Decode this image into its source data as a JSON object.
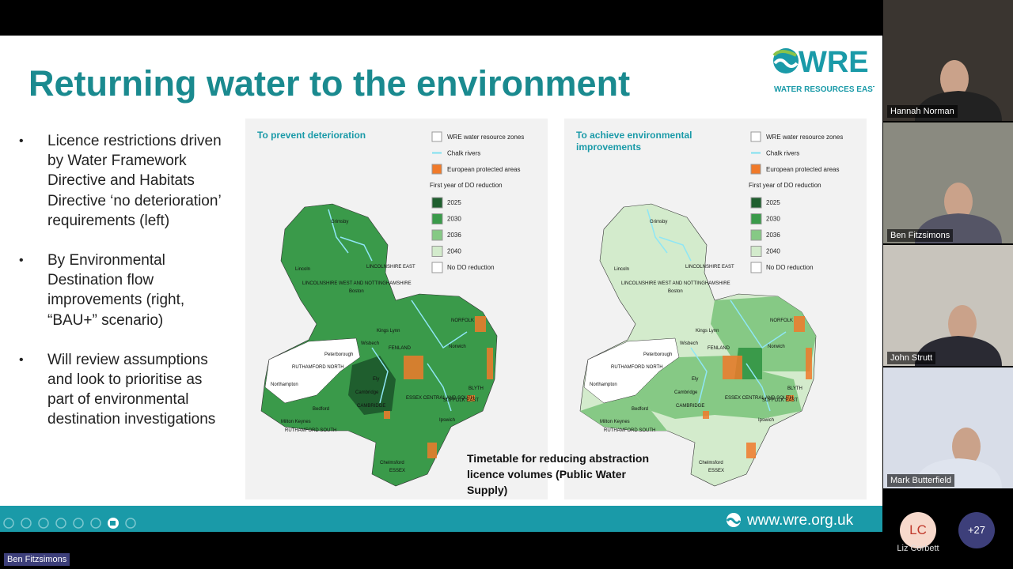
{
  "slide": {
    "title": "Returning water to the environment",
    "logo": {
      "name": "WRE",
      "subtitle": "WATER RESOURCES EAST"
    },
    "bullets": [
      "Licence restrictions driven by Water Framework Directive and Habitats Directive ‘no deterioration’ requirements (left)",
      "By Environmental Destination flow improvements (right, “BAU+” scenario)",
      "Will review assumptions and look to prioritise as part of environmental destination investigations"
    ],
    "maps": [
      {
        "title": "To prevent deterioration",
        "legend": [
          {
            "label": "WRE water resource zones",
            "color": "#ffffff",
            "kind": "box"
          },
          {
            "label": "Chalk rivers",
            "color": "#7fe0f0",
            "kind": "line"
          },
          {
            "label": "European protected areas",
            "color": "#f07a2a",
            "kind": "box"
          }
        ],
        "legend_title": "First year of DO reduction",
        "years": [
          {
            "label": "2025",
            "color": "#1f5e2e"
          },
          {
            "label": "2030",
            "color": "#3a9a4a"
          },
          {
            "label": "2036",
            "color": "#86c985"
          },
          {
            "label": "2040",
            "color": "#d3ebcc"
          },
          {
            "label": "No DO reduction",
            "color": "#ffffff"
          }
        ],
        "places": [
          "Grimsby",
          "LINCOLNSHIRE EAST",
          "Lincoln",
          "LINCOLNSHIRE WEST AND NOTTINGHAMSHIRE",
          "Boston",
          "NORFOLK",
          "Kings Lynn",
          "Wisbech",
          "FENLAND",
          "Norwich",
          "Peterborough",
          "RUTHAMFORD NORTH",
          "Ely",
          "Northampton",
          "Cambridge",
          "CAMBRIDGE",
          "SUFFOLK EAST",
          "BLYTH",
          "Bedford",
          "Milton Keynes",
          "RUTHAMFORD SOUTH",
          "ESSEX CENTRAL AND SOUTH",
          "Ipswich",
          "Chelmsford",
          "ESSEX"
        ]
      },
      {
        "title": "To achieve environmental improvements",
        "legend": [
          {
            "label": "WRE water resource zones",
            "color": "#ffffff",
            "kind": "box"
          },
          {
            "label": "Chalk rivers",
            "color": "#7fe0f0",
            "kind": "line"
          },
          {
            "label": "European protected areas",
            "color": "#f07a2a",
            "kind": "box"
          }
        ],
        "legend_title": "First year of DO reduction",
        "years": [
          {
            "label": "2025",
            "color": "#1f5e2e"
          },
          {
            "label": "2030",
            "color": "#3a9a4a"
          },
          {
            "label": "2036",
            "color": "#86c985"
          },
          {
            "label": "2040",
            "color": "#d3ebcc"
          },
          {
            "label": "No DO reduction",
            "color": "#ffffff"
          }
        ],
        "places": [
          "Grimsby",
          "LINCOLNSHIRE EAST",
          "Lincoln",
          "LINCOLNSHIRE WEST AND NOTTINGHAMSHIRE",
          "Boston",
          "NORFOLK",
          "Kings Lynn",
          "Wisbech",
          "FENLAND",
          "Norwich",
          "Peterborough",
          "RUTHAMFORD NORTH",
          "Ely",
          "Northampton",
          "Cambridge",
          "CAMBRIDGE",
          "SUFFOLK EAST",
          "BLYTH",
          "Bedford",
          "Milton Keynes",
          "RUTHAMFORD SOUTH",
          "ESSEX CENTRAL AND SOUTH",
          "Ipswich",
          "Chelmsford",
          "ESSEX"
        ]
      }
    ],
    "caption": "Timetable for reducing abstraction licence volumes (Public Water Supply)",
    "url": "www.wre.org.uk"
  },
  "participants": [
    {
      "name": "Hannah Norman"
    },
    {
      "name": "Ben Fitzsimons"
    },
    {
      "name": "John Strutt"
    },
    {
      "name": "Mark Butterfield"
    }
  ],
  "extra": {
    "initials": "LC",
    "name": "Liz Corbett",
    "more": "+27"
  },
  "speaker": "Ben Fitzsimons"
}
